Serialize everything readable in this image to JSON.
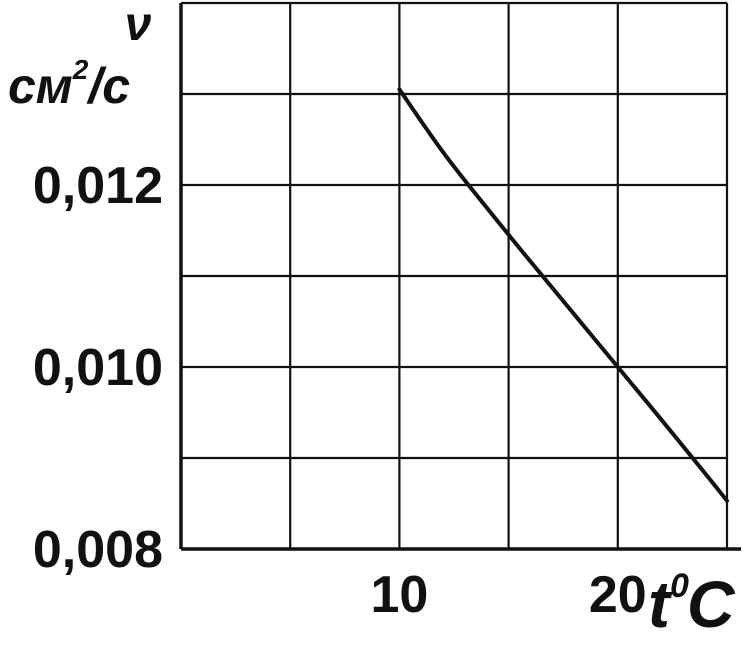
{
  "chart_data": {
    "type": "line",
    "y_symbol": "ν",
    "y_unit_base": "см",
    "y_unit_sup": "2",
    "y_unit_tail": "/с",
    "x_symbol": "t",
    "x_symbol_sup": "0",
    "x_unit": "C",
    "x_ticks": [
      10,
      20
    ],
    "x_tick_labels": [
      "10",
      "20"
    ],
    "y_ticks": [
      0.008,
      0.01,
      0.012
    ],
    "y_tick_labels": [
      "0,008",
      "0,010",
      "0,012"
    ],
    "xlim": [
      0,
      25
    ],
    "ylim": [
      0.008,
      0.014
    ],
    "x_gridlines": [
      5,
      10,
      15,
      20,
      25
    ],
    "y_gridlines": [
      0.009,
      0.01,
      0.011,
      0.012,
      0.013,
      0.014
    ],
    "grid": true,
    "series": [
      {
        "x": [
          10,
          12,
          14,
          16,
          18,
          20,
          22,
          24,
          25
        ],
        "values": [
          0.01305,
          0.01236,
          0.01175,
          0.01116,
          0.01058,
          0.01,
          0.00942,
          0.00883,
          0.00853
        ],
        "color": "#111111"
      }
    ]
  }
}
